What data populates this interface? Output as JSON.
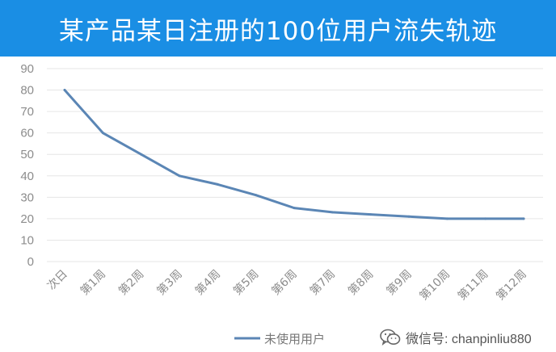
{
  "colors": {
    "title_bg": "#1a8ee4",
    "title_text": "#ffffff",
    "series_line": "#5b86b5",
    "axis_text": "#8c8c8c",
    "grid": "#e6e6e6"
  },
  "watermark": {
    "text": "微信号: chanpinliu880",
    "icon": "wechat-icon"
  },
  "chart_data": {
    "type": "line",
    "title": "某产品某日注册的100位用户流失轨迹",
    "xlabel": "",
    "ylabel": "",
    "ylim": [
      0,
      90
    ],
    "yticks": [
      0,
      10,
      20,
      30,
      40,
      50,
      60,
      70,
      80,
      90
    ],
    "grid": true,
    "legend_position": "bottom-center",
    "categories": [
      "次日",
      "第1周",
      "第2周",
      "第3周",
      "第4周",
      "第5周",
      "第6周",
      "第7周",
      "第8周",
      "第9周",
      "第10周",
      "第11周",
      "第12周"
    ],
    "series": [
      {
        "name": "未使用用户",
        "values": [
          80,
          60,
          50,
          40,
          36,
          31,
          25,
          23,
          22,
          21,
          20,
          20,
          20
        ]
      }
    ]
  }
}
